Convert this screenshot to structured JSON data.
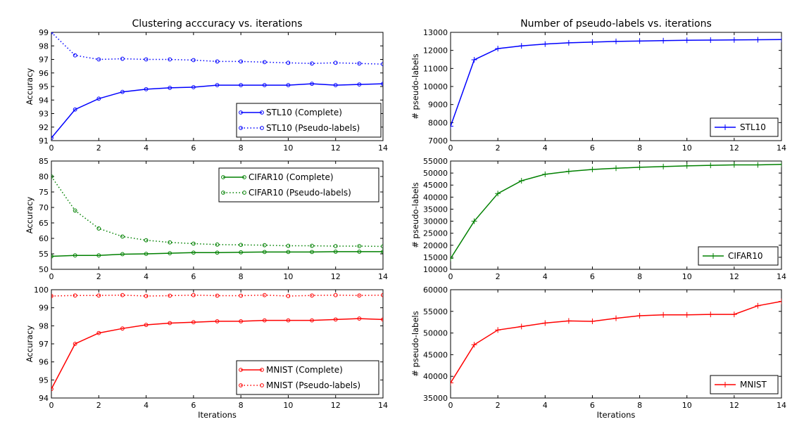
{
  "chart_data": [
    {
      "type": "line",
      "title": "Clustering acccuracy vs. iterations",
      "xlabel": "",
      "ylabel": "Accuracy",
      "xlim": [
        0,
        14
      ],
      "ylim": [
        91,
        99
      ],
      "xticks": [
        0,
        2,
        4,
        6,
        8,
        10,
        12,
        14
      ],
      "yticks": [
        91,
        92,
        93,
        94,
        95,
        96,
        97,
        98,
        99
      ],
      "legend_position": "lower-right",
      "grid": false,
      "x": [
        0,
        1,
        2,
        3,
        4,
        5,
        6,
        7,
        8,
        9,
        10,
        11,
        12,
        13,
        14
      ],
      "series": [
        {
          "name": "STL10 (Complete)",
          "color": "#0000ff",
          "style": "solid",
          "marker": "circle",
          "values": [
            91.2,
            93.3,
            94.1,
            94.6,
            94.8,
            94.9,
            94.95,
            95.1,
            95.1,
            95.1,
            95.1,
            95.2,
            95.1,
            95.15,
            95.2
          ]
        },
        {
          "name": "STL10 (Pseudo-labels)",
          "color": "#0000ff",
          "style": "dotted",
          "marker": "circle",
          "values": [
            99.0,
            97.3,
            97.0,
            97.05,
            97.0,
            97.0,
            96.95,
            96.85,
            96.85,
            96.8,
            96.75,
            96.7,
            96.75,
            96.7,
            96.65
          ]
        }
      ]
    },
    {
      "type": "line",
      "title": "",
      "xlabel": "",
      "ylabel": "Accuracy",
      "xlim": [
        0,
        14
      ],
      "ylim": [
        50,
        85
      ],
      "xticks": [
        0,
        2,
        4,
        6,
        8,
        10,
        12,
        14
      ],
      "yticks": [
        50,
        55,
        60,
        65,
        70,
        75,
        80,
        85
      ],
      "legend_position": "upper-right",
      "grid": false,
      "x": [
        0,
        1,
        2,
        3,
        4,
        5,
        6,
        7,
        8,
        9,
        10,
        11,
        12,
        13,
        14
      ],
      "series": [
        {
          "name": "CIFAR10 (Complete)",
          "color": "#008000",
          "style": "solid",
          "marker": "circle",
          "values": [
            54.2,
            54.5,
            54.5,
            54.9,
            55.0,
            55.2,
            55.4,
            55.4,
            55.5,
            55.6,
            55.6,
            55.6,
            55.7,
            55.7,
            55.7
          ]
        },
        {
          "name": "CIFAR10 (Pseudo-labels)",
          "color": "#008000",
          "style": "dotted",
          "marker": "circle",
          "values": [
            80.0,
            69.0,
            63.2,
            60.6,
            59.4,
            58.7,
            58.3,
            58.0,
            57.9,
            57.8,
            57.6,
            57.6,
            57.5,
            57.5,
            57.4
          ]
        }
      ]
    },
    {
      "type": "line",
      "title": "",
      "xlabel": "Iterations",
      "ylabel": "Accuracy",
      "xlim": [
        0,
        14
      ],
      "ylim": [
        94,
        100
      ],
      "xticks": [
        0,
        2,
        4,
        6,
        8,
        10,
        12,
        14
      ],
      "yticks": [
        94,
        95,
        96,
        97,
        98,
        99,
        100
      ],
      "legend_position": "lower-right",
      "grid": false,
      "x": [
        0,
        1,
        2,
        3,
        4,
        5,
        6,
        7,
        8,
        9,
        10,
        11,
        12,
        13,
        14
      ],
      "series": [
        {
          "name": "MNIST (Complete)",
          "color": "#ff0000",
          "style": "solid",
          "marker": "circle",
          "values": [
            94.5,
            97.0,
            97.6,
            97.85,
            98.05,
            98.15,
            98.2,
            98.25,
            98.25,
            98.3,
            98.3,
            98.3,
            98.35,
            98.4,
            98.35
          ]
        },
        {
          "name": "MNIST (Pseudo-labels)",
          "color": "#ff0000",
          "style": "dotted",
          "marker": "circle",
          "values": [
            99.65,
            99.68,
            99.68,
            99.7,
            99.65,
            99.67,
            99.7,
            99.67,
            99.67,
            99.7,
            99.65,
            99.68,
            99.7,
            99.68,
            99.7
          ]
        }
      ]
    },
    {
      "type": "line",
      "title": "Number of pseudo-labels  vs. iterations",
      "xlabel": "",
      "ylabel": "# pseudo-labels",
      "xlim": [
        0,
        14
      ],
      "ylim": [
        7000,
        13000
      ],
      "xticks": [
        0,
        2,
        4,
        6,
        8,
        10,
        12,
        14
      ],
      "yticks": [
        7000,
        8000,
        9000,
        10000,
        11000,
        12000,
        13000
      ],
      "legend_position": "lower-right",
      "grid": false,
      "x": [
        0,
        1,
        2,
        3,
        4,
        5,
        6,
        7,
        8,
        9,
        10,
        11,
        12,
        13,
        14
      ],
      "series": [
        {
          "name": "STL10",
          "color": "#0000ff",
          "style": "solid",
          "marker": "plus",
          "values": [
            7800,
            11480,
            12100,
            12250,
            12350,
            12420,
            12460,
            12500,
            12520,
            12540,
            12560,
            12570,
            12580,
            12590,
            12600
          ]
        }
      ]
    },
    {
      "type": "line",
      "title": "",
      "xlabel": "",
      "ylabel": "# pseudo-labels",
      "xlim": [
        0,
        14
      ],
      "ylim": [
        10000,
        55000
      ],
      "xticks": [
        0,
        2,
        4,
        6,
        8,
        10,
        12,
        14
      ],
      "yticks": [
        10000,
        15000,
        20000,
        25000,
        30000,
        35000,
        40000,
        45000,
        50000,
        55000
      ],
      "legend_position": "lower-right",
      "grid": false,
      "x": [
        0,
        1,
        2,
        3,
        4,
        5,
        6,
        7,
        8,
        9,
        10,
        11,
        12,
        13,
        14
      ],
      "series": [
        {
          "name": "CIFAR10",
          "color": "#008000",
          "style": "solid",
          "marker": "plus",
          "values": [
            14500,
            30000,
            41500,
            46800,
            49500,
            50700,
            51500,
            52000,
            52400,
            52700,
            53000,
            53200,
            53400,
            53400,
            53600
          ]
        }
      ]
    },
    {
      "type": "line",
      "title": "",
      "xlabel": "Iterations",
      "ylabel": "# pseudo-labels",
      "xlim": [
        0,
        14
      ],
      "ylim": [
        35000,
        60000
      ],
      "xticks": [
        0,
        2,
        4,
        6,
        8,
        10,
        12,
        14
      ],
      "yticks": [
        35000,
        40000,
        45000,
        50000,
        55000,
        60000
      ],
      "legend_position": "lower-right",
      "grid": false,
      "x": [
        0,
        1,
        2,
        3,
        4,
        5,
        6,
        7,
        8,
        9,
        10,
        11,
        12,
        13,
        14
      ],
      "series": [
        {
          "name": "MNIST",
          "color": "#ff0000",
          "style": "solid",
          "marker": "plus",
          "values": [
            38500,
            47300,
            50700,
            51500,
            52300,
            52800,
            52700,
            53400,
            54000,
            54200,
            54200,
            54300,
            54300,
            56300,
            57300
          ]
        }
      ]
    }
  ]
}
